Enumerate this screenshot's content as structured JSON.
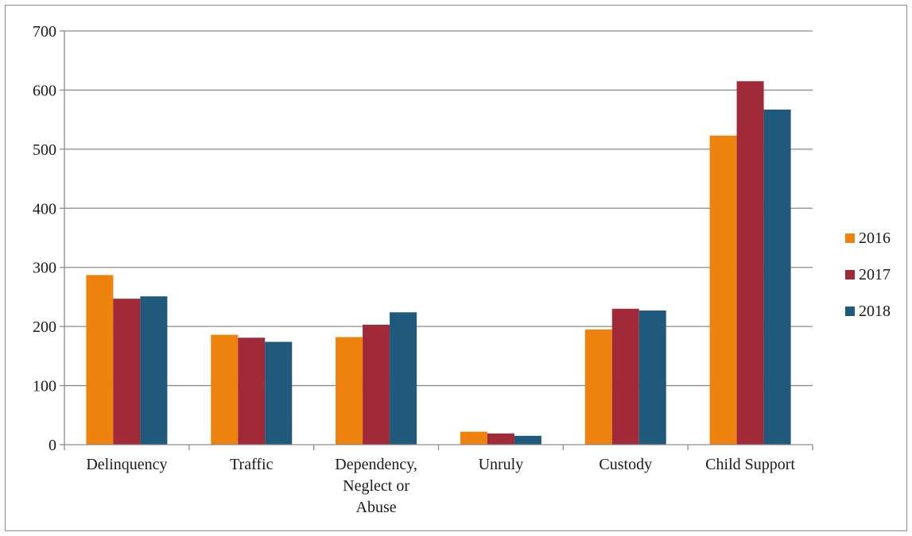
{
  "chart_data": {
    "type": "bar",
    "title": "",
    "xlabel": "",
    "ylabel": "",
    "ylim": [
      0,
      700
    ],
    "yticks": [
      0,
      100,
      200,
      300,
      400,
      500,
      600,
      700
    ],
    "y_tick_labels": [
      "0",
      "100",
      "200",
      "300",
      "400",
      "500",
      "600",
      "700"
    ],
    "categories": [
      "Delinquency",
      "Traffic",
      "Dependency, Neglect or Abuse",
      "Unruly",
      "Custody",
      "Child Support"
    ],
    "category_label_lines": [
      [
        "Delinquency"
      ],
      [
        "Traffic"
      ],
      [
        "Dependency,",
        "Neglect or",
        "Abuse"
      ],
      [
        "Unruly"
      ],
      [
        "Custody"
      ],
      [
        "Child Support"
      ]
    ],
    "series": [
      {
        "name": "2016",
        "color": "#ee820f",
        "values": [
          287,
          186,
          182,
          22,
          195,
          523
        ]
      },
      {
        "name": "2017",
        "color": "#a02a37",
        "values": [
          247,
          181,
          203,
          19,
          230,
          615
        ]
      },
      {
        "name": "2018",
        "color": "#1f5a7c",
        "values": [
          251,
          174,
          224,
          15,
          227,
          567
        ]
      }
    ],
    "grid": true,
    "legend_position": "right"
  }
}
